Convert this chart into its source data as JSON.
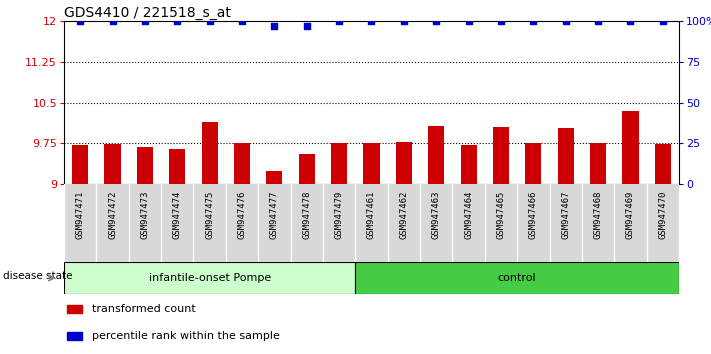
{
  "title": "GDS4410 / 221518_s_at",
  "samples": [
    "GSM947471",
    "GSM947472",
    "GSM947473",
    "GSM947474",
    "GSM947475",
    "GSM947476",
    "GSM947477",
    "GSM947478",
    "GSM947479",
    "GSM947461",
    "GSM947462",
    "GSM947463",
    "GSM947464",
    "GSM947465",
    "GSM947466",
    "GSM947467",
    "GSM947468",
    "GSM947469",
    "GSM947470"
  ],
  "bar_values": [
    9.72,
    9.73,
    9.69,
    9.65,
    10.15,
    9.76,
    9.25,
    9.55,
    9.75,
    9.76,
    9.77,
    10.07,
    9.72,
    10.05,
    9.75,
    10.04,
    9.76,
    10.35,
    9.73
  ],
  "dot_values": [
    100,
    100,
    100,
    100,
    100,
    100,
    97,
    97,
    100,
    100,
    100,
    100,
    100,
    100,
    100,
    100,
    100,
    100,
    100
  ],
  "ylim": [
    9.0,
    12.0
  ],
  "y_left_ticks": [
    9.0,
    9.75,
    10.5,
    11.25,
    12.0
  ],
  "y_left_labels": [
    "9",
    "9.75",
    "10.5",
    "11.25",
    "12"
  ],
  "y_right_ticks": [
    0,
    25,
    50,
    75,
    100
  ],
  "y_right_labels": [
    "0",
    "25",
    "50",
    "75",
    "100%"
  ],
  "hlines": [
    9.75,
    10.5,
    11.25
  ],
  "bar_color": "#CC0000",
  "dot_color": "#0000CC",
  "bar_bottom": 9.0,
  "disease_state_label": "disease state",
  "group1_label": "infantile-onset Pompe",
  "group1_count": 9,
  "group1_color": "#ccffcc",
  "group2_label": "control",
  "group2_count": 10,
  "group2_color": "#44cc44",
  "legend_items": [
    {
      "color": "#CC0000",
      "label": "transformed count"
    },
    {
      "color": "#0000CC",
      "label": "percentile rank within the sample"
    }
  ]
}
